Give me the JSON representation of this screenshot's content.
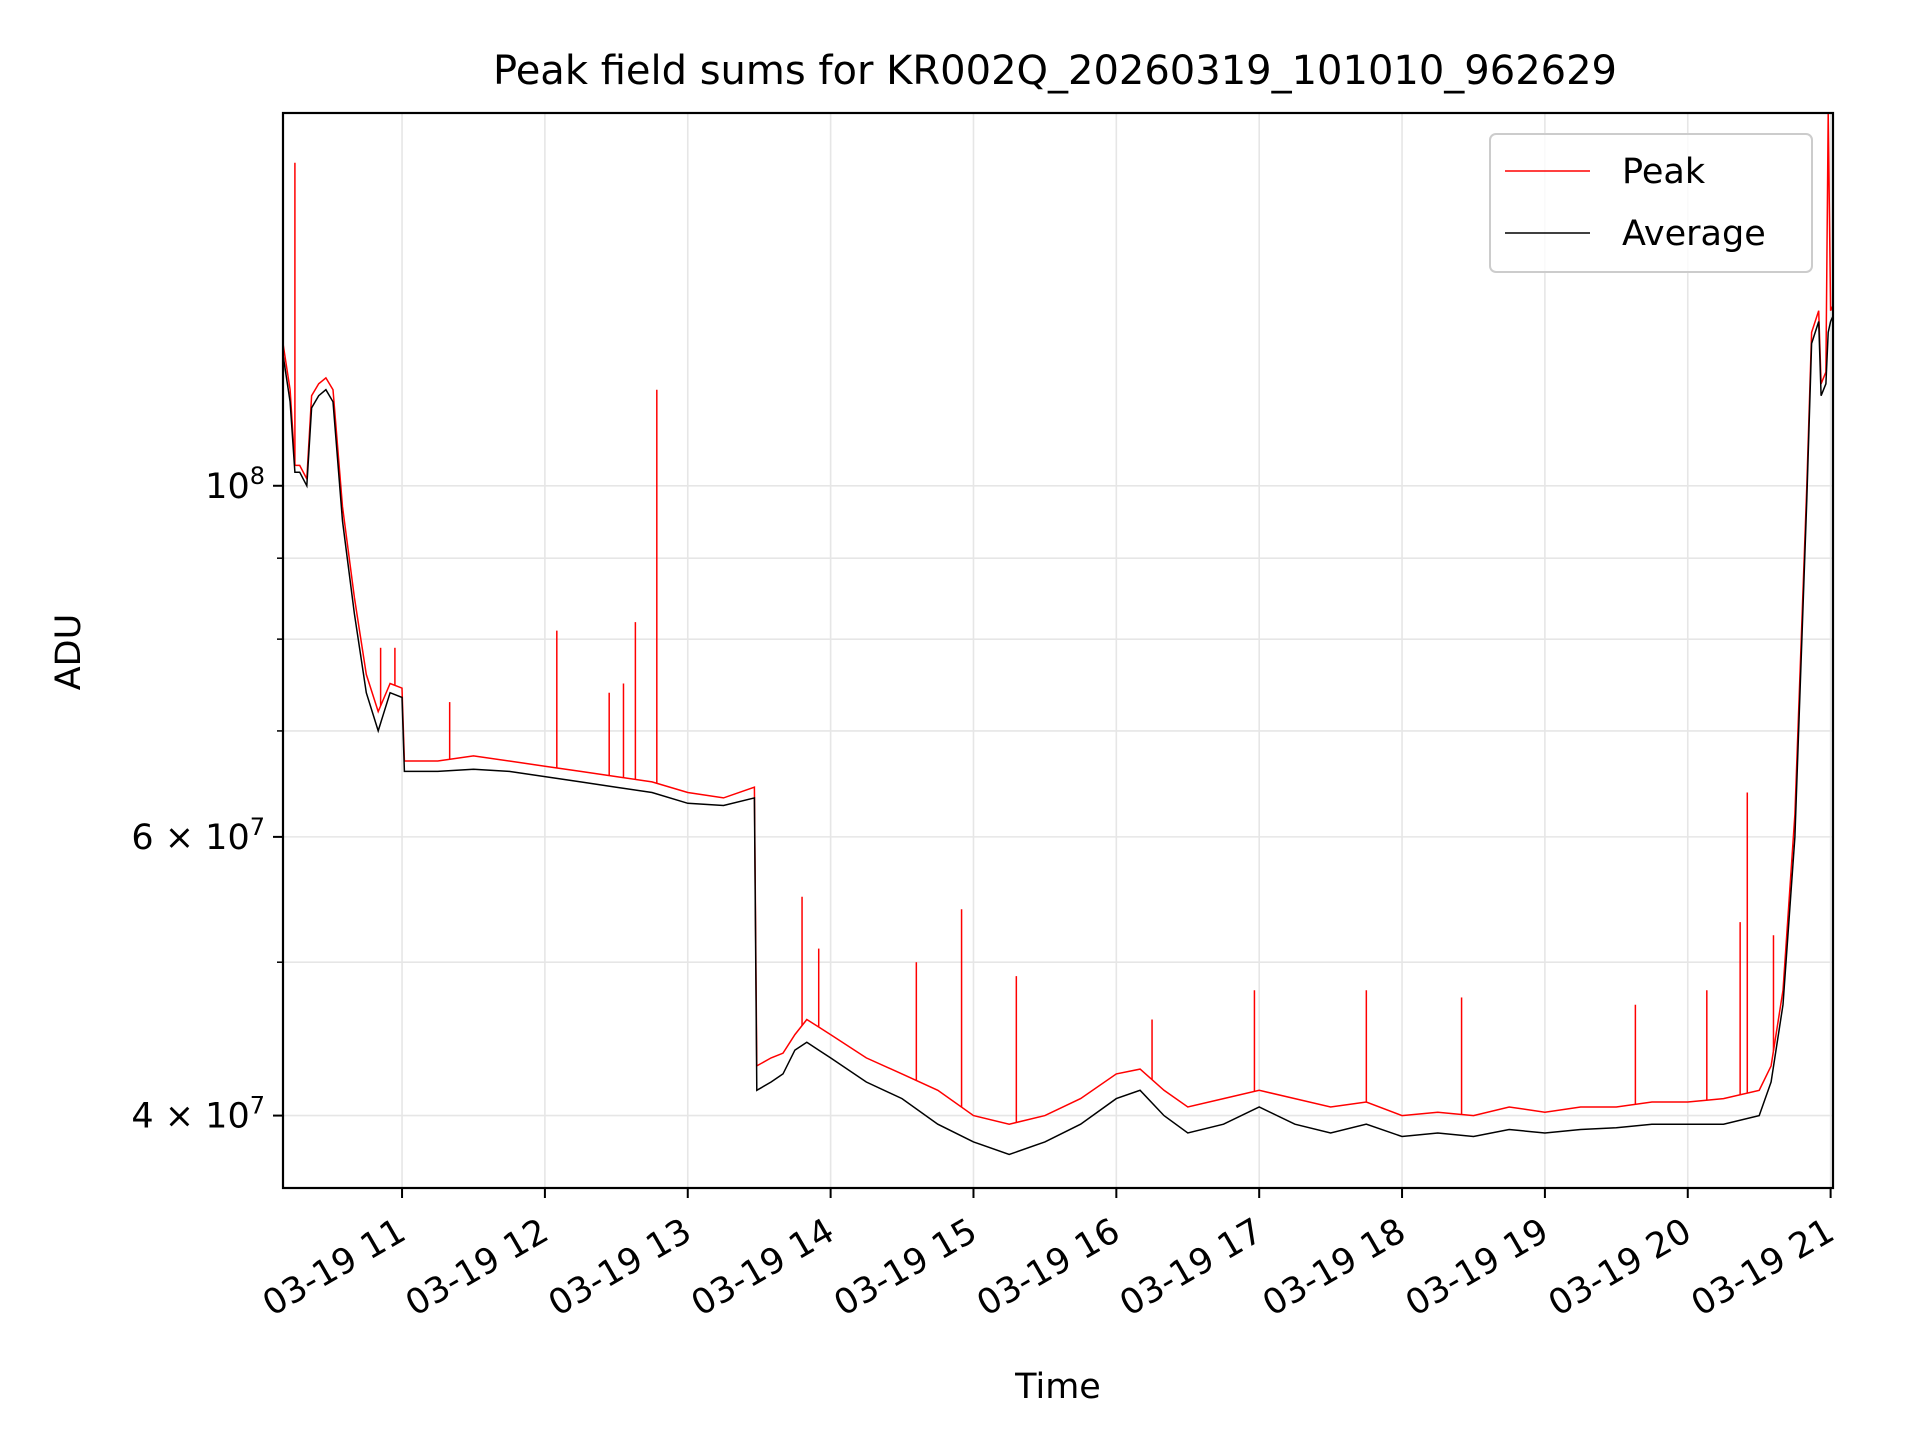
{
  "chart_data": {
    "type": "line",
    "title": "Peak field sums for KR002Q_20260319_101010_962629",
    "xlabel": "Time",
    "ylabel": "ADU",
    "y_scale": "log",
    "ylim": [
      36000000,
      172000000
    ],
    "xlim": [
      "2026-03-19 10:10",
      "2026-03-19 21:01"
    ],
    "grid": true,
    "legend_position": "top-right",
    "x_ticks": [
      {
        "value": "2026-03-19 11:00",
        "label": "03-19 11"
      },
      {
        "value": "2026-03-19 12:00",
        "label": "03-19 12"
      },
      {
        "value": "2026-03-19 13:00",
        "label": "03-19 13"
      },
      {
        "value": "2026-03-19 14:00",
        "label": "03-19 14"
      },
      {
        "value": "2026-03-19 15:00",
        "label": "03-19 15"
      },
      {
        "value": "2026-03-19 16:00",
        "label": "03-19 16"
      },
      {
        "value": "2026-03-19 17:00",
        "label": "03-19 17"
      },
      {
        "value": "2026-03-19 18:00",
        "label": "03-19 18"
      },
      {
        "value": "2026-03-19 19:00",
        "label": "03-19 19"
      },
      {
        "value": "2026-03-19 20:00",
        "label": "03-19 20"
      },
      {
        "value": "2026-03-19 21:00",
        "label": "03-19 21"
      }
    ],
    "y_ticks": [
      {
        "value": 100000000,
        "base": "10",
        "exp": "8"
      },
      {
        "value": 60000000,
        "base": "6 × 10",
        "exp": "7"
      },
      {
        "value": 40000000,
        "base": "4 × 10",
        "exp": "7"
      }
    ],
    "y_minor_ticks": [
      50000000,
      70000000,
      80000000,
      90000000
    ],
    "series": [
      {
        "name": "Peak",
        "color": "#ff0000",
        "points": [
          [
            "2026-03-19 10:10",
            123000000
          ],
          [
            "2026-03-19 10:13",
            115000000
          ],
          [
            "2026-03-19 10:15",
            103000000
          ],
          [
            "2026-03-19 10:17",
            103000000
          ],
          [
            "2026-03-19 10:20",
            101000000
          ],
          [
            "2026-03-19 10:22",
            114000000
          ],
          [
            "2026-03-19 10:25",
            116000000
          ],
          [
            "2026-03-19 10:28",
            117000000
          ],
          [
            "2026-03-19 10:31",
            115000000
          ],
          [
            "2026-03-19 10:35",
            97000000
          ],
          [
            "2026-03-19 10:40",
            85000000
          ],
          [
            "2026-03-19 10:45",
            76000000
          ],
          [
            "2026-03-19 10:50",
            72000000
          ],
          [
            "2026-03-19 10:55",
            75000000
          ],
          [
            "2026-03-19 11:00",
            74500000
          ],
          [
            "2026-03-19 11:01",
            67000000
          ],
          [
            "2026-03-19 11:15",
            67000000
          ],
          [
            "2026-03-19 11:30",
            67500000
          ],
          [
            "2026-03-19 11:45",
            67000000
          ],
          [
            "2026-03-19 12:00",
            66500000
          ],
          [
            "2026-03-19 12:15",
            66000000
          ],
          [
            "2026-03-19 12:30",
            65500000
          ],
          [
            "2026-03-19 12:45",
            65000000
          ],
          [
            "2026-03-19 13:00",
            64000000
          ],
          [
            "2026-03-19 13:15",
            63500000
          ],
          [
            "2026-03-19 13:28",
            64500000
          ],
          [
            "2026-03-19 13:29",
            43000000
          ],
          [
            "2026-03-19 13:35",
            43500000
          ],
          [
            "2026-03-19 13:40",
            43800000
          ],
          [
            "2026-03-19 13:45",
            45000000
          ],
          [
            "2026-03-19 13:50",
            46000000
          ],
          [
            "2026-03-19 13:55",
            45500000
          ],
          [
            "2026-03-19 14:00",
            45000000
          ],
          [
            "2026-03-19 14:15",
            43500000
          ],
          [
            "2026-03-19 14:30",
            42500000
          ],
          [
            "2026-03-19 14:45",
            41500000
          ],
          [
            "2026-03-19 15:00",
            40000000
          ],
          [
            "2026-03-19 15:15",
            39500000
          ],
          [
            "2026-03-19 15:30",
            40000000
          ],
          [
            "2026-03-19 15:45",
            41000000
          ],
          [
            "2026-03-19 16:00",
            42500000
          ],
          [
            "2026-03-19 16:10",
            42800000
          ],
          [
            "2026-03-19 16:20",
            41500000
          ],
          [
            "2026-03-19 16:30",
            40500000
          ],
          [
            "2026-03-19 16:45",
            41000000
          ],
          [
            "2026-03-19 17:00",
            41500000
          ],
          [
            "2026-03-19 17:15",
            41000000
          ],
          [
            "2026-03-19 17:30",
            40500000
          ],
          [
            "2026-03-19 17:45",
            40800000
          ],
          [
            "2026-03-19 18:00",
            40000000
          ],
          [
            "2026-03-19 18:15",
            40200000
          ],
          [
            "2026-03-19 18:30",
            40000000
          ],
          [
            "2026-03-19 18:45",
            40500000
          ],
          [
            "2026-03-19 19:00",
            40200000
          ],
          [
            "2026-03-19 19:15",
            40500000
          ],
          [
            "2026-03-19 19:30",
            40500000
          ],
          [
            "2026-03-19 19:45",
            40800000
          ],
          [
            "2026-03-19 20:00",
            40800000
          ],
          [
            "2026-03-19 20:15",
            41000000
          ],
          [
            "2026-03-19 20:30",
            41500000
          ],
          [
            "2026-03-19 20:35",
            43000000
          ],
          [
            "2026-03-19 20:40",
            48000000
          ],
          [
            "2026-03-19 20:45",
            62000000
          ],
          [
            "2026-03-19 20:50",
            100000000
          ],
          [
            "2026-03-19 20:52",
            125000000
          ],
          [
            "2026-03-19 20:55",
            129000000
          ],
          [
            "2026-03-19 20:56",
            116000000
          ],
          [
            "2026-03-19 20:58",
            118000000
          ],
          [
            "2026-03-19 20:59",
            172000000
          ],
          [
            "2026-03-19 21:00",
            129000000
          ],
          [
            "2026-03-19 21:01",
            130000000
          ]
        ],
        "spikes": [
          [
            "2026-03-19 10:15",
            160000000
          ],
          [
            "2026-03-19 10:51",
            79000000
          ],
          [
            "2026-03-19 10:57",
            79000000
          ],
          [
            "2026-03-19 11:20",
            73000000
          ],
          [
            "2026-03-19 12:05",
            81000000
          ],
          [
            "2026-03-19 12:27",
            74000000
          ],
          [
            "2026-03-19 12:33",
            75000000
          ],
          [
            "2026-03-19 12:38",
            82000000
          ],
          [
            "2026-03-19 12:47",
            115000000
          ],
          [
            "2026-03-19 13:48",
            55000000
          ],
          [
            "2026-03-19 13:55",
            51000000
          ],
          [
            "2026-03-19 14:36",
            50000000
          ],
          [
            "2026-03-19 14:55",
            54000000
          ],
          [
            "2026-03-19 15:18",
            49000000
          ],
          [
            "2026-03-19 16:15",
            46000000
          ],
          [
            "2026-03-19 16:58",
            48000000
          ],
          [
            "2026-03-19 17:45",
            48000000
          ],
          [
            "2026-03-19 18:25",
            47500000
          ],
          [
            "2026-03-19 19:38",
            47000000
          ],
          [
            "2026-03-19 20:08",
            48000000
          ],
          [
            "2026-03-19 20:22",
            53000000
          ],
          [
            "2026-03-19 20:25",
            64000000
          ],
          [
            "2026-03-19 20:36",
            52000000
          ]
        ]
      },
      {
        "name": "Average",
        "color": "#000000",
        "points": [
          [
            "2026-03-19 10:10",
            121000000
          ],
          [
            "2026-03-19 10:13",
            113000000
          ],
          [
            "2026-03-19 10:15",
            102000000
          ],
          [
            "2026-03-19 10:17",
            102000000
          ],
          [
            "2026-03-19 10:20",
            100000000
          ],
          [
            "2026-03-19 10:22",
            112000000
          ],
          [
            "2026-03-19 10:25",
            114000000
          ],
          [
            "2026-03-19 10:28",
            115000000
          ],
          [
            "2026-03-19 10:31",
            113000000
          ],
          [
            "2026-03-19 10:35",
            95000000
          ],
          [
            "2026-03-19 10:40",
            83000000
          ],
          [
            "2026-03-19 10:45",
            74000000
          ],
          [
            "2026-03-19 10:50",
            70000000
          ],
          [
            "2026-03-19 10:55",
            74000000
          ],
          [
            "2026-03-19 11:00",
            73500000
          ],
          [
            "2026-03-19 11:01",
            66000000
          ],
          [
            "2026-03-19 11:15",
            66000000
          ],
          [
            "2026-03-19 11:30",
            66200000
          ],
          [
            "2026-03-19 11:45",
            66000000
          ],
          [
            "2026-03-19 12:00",
            65500000
          ],
          [
            "2026-03-19 12:15",
            65000000
          ],
          [
            "2026-03-19 12:30",
            64500000
          ],
          [
            "2026-03-19 12:45",
            64000000
          ],
          [
            "2026-03-19 13:00",
            63000000
          ],
          [
            "2026-03-19 13:15",
            62800000
          ],
          [
            "2026-03-19 13:28",
            63500000
          ],
          [
            "2026-03-19 13:29",
            41500000
          ],
          [
            "2026-03-19 13:35",
            42000000
          ],
          [
            "2026-03-19 13:40",
            42500000
          ],
          [
            "2026-03-19 13:45",
            44000000
          ],
          [
            "2026-03-19 13:50",
            44500000
          ],
          [
            "2026-03-19 13:55",
            44000000
          ],
          [
            "2026-03-19 14:00",
            43500000
          ],
          [
            "2026-03-19 14:15",
            42000000
          ],
          [
            "2026-03-19 14:30",
            41000000
          ],
          [
            "2026-03-19 14:45",
            39500000
          ],
          [
            "2026-03-19 15:00",
            38500000
          ],
          [
            "2026-03-19 15:15",
            37800000
          ],
          [
            "2026-03-19 15:30",
            38500000
          ],
          [
            "2026-03-19 15:45",
            39500000
          ],
          [
            "2026-03-19 16:00",
            41000000
          ],
          [
            "2026-03-19 16:10",
            41500000
          ],
          [
            "2026-03-19 16:20",
            40000000
          ],
          [
            "2026-03-19 16:30",
            39000000
          ],
          [
            "2026-03-19 16:45",
            39500000
          ],
          [
            "2026-03-19 17:00",
            40500000
          ],
          [
            "2026-03-19 17:15",
            39500000
          ],
          [
            "2026-03-19 17:30",
            39000000
          ],
          [
            "2026-03-19 17:45",
            39500000
          ],
          [
            "2026-03-19 18:00",
            38800000
          ],
          [
            "2026-03-19 18:15",
            39000000
          ],
          [
            "2026-03-19 18:30",
            38800000
          ],
          [
            "2026-03-19 18:45",
            39200000
          ],
          [
            "2026-03-19 19:00",
            39000000
          ],
          [
            "2026-03-19 19:15",
            39200000
          ],
          [
            "2026-03-19 19:30",
            39300000
          ],
          [
            "2026-03-19 19:45",
            39500000
          ],
          [
            "2026-03-19 20:00",
            39500000
          ],
          [
            "2026-03-19 20:15",
            39500000
          ],
          [
            "2026-03-19 20:30",
            40000000
          ],
          [
            "2026-03-19 20:35",
            42000000
          ],
          [
            "2026-03-19 20:40",
            47000000
          ],
          [
            "2026-03-19 20:45",
            60000000
          ],
          [
            "2026-03-19 20:50",
            98000000
          ],
          [
            "2026-03-19 20:52",
            123000000
          ],
          [
            "2026-03-19 20:55",
            127000000
          ],
          [
            "2026-03-19 20:56",
            114000000
          ],
          [
            "2026-03-19 20:58",
            116000000
          ],
          [
            "2026-03-19 20:59",
            125000000
          ],
          [
            "2026-03-19 21:00",
            127000000
          ],
          [
            "2026-03-19 21:01",
            128000000
          ]
        ]
      }
    ]
  }
}
